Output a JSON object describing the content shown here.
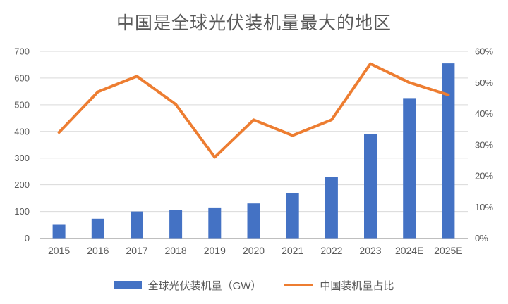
{
  "chart_data": {
    "type": "bar",
    "title": "中国是全球光伏装机量最大的地区",
    "categories": [
      "2015",
      "2016",
      "2017",
      "2018",
      "2019",
      "2020",
      "2021",
      "2022",
      "2023",
      "2024E",
      "2025E"
    ],
    "series": [
      {
        "name": "全球光伏装机量（GW）",
        "type": "bar",
        "axis": "left",
        "color": "#4472C4",
        "values": [
          50,
          73,
          100,
          105,
          115,
          130,
          170,
          230,
          390,
          525,
          655
        ]
      },
      {
        "name": "中国装机量占比",
        "type": "line",
        "axis": "right",
        "color": "#ED7D31",
        "values": [
          34,
          47,
          52,
          43,
          26,
          38,
          33,
          38,
          56,
          50,
          46
        ],
        "unit": "%"
      }
    ],
    "axes": {
      "left": {
        "min": 0,
        "max": 700,
        "step": 100
      },
      "right": {
        "min": 0,
        "max": 60,
        "step": 10,
        "suffix": "%"
      }
    },
    "grid": true,
    "legend_position": "bottom",
    "colors": {
      "grid": "#D9D9D9",
      "baseline": "#BFBFBF",
      "axis_text": "#595959",
      "title_text": "#595959",
      "background": "#FFFFFF"
    }
  }
}
